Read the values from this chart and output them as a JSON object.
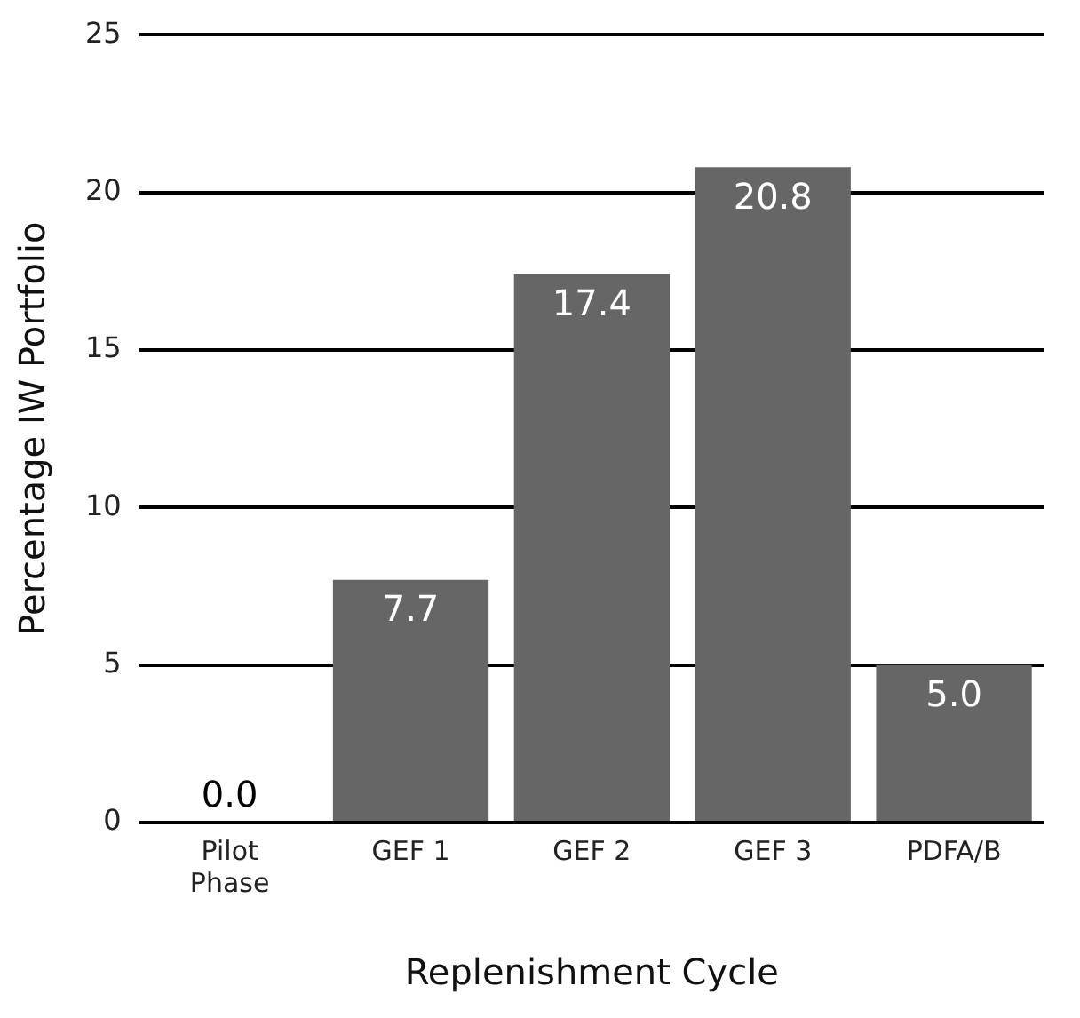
{
  "chart_data": {
    "type": "bar",
    "xlabel": "Replenishment Cycle",
    "ylabel": "Percentage IW Portfolio",
    "categories": [
      "Pilot\nPhase",
      "GEF 1",
      "GEF 2",
      "GEF 3",
      "PDFA/B"
    ],
    "values": [
      0.0,
      7.7,
      17.4,
      20.8,
      5.0
    ],
    "color": "#666666",
    "value_labels": [
      "0.0",
      "7.7",
      "17.4",
      "20.8",
      "5.0"
    ],
    "ylim": [
      0,
      25
    ],
    "yticks": [
      0,
      5,
      10,
      15,
      20,
      25
    ],
    "grid": "y"
  }
}
